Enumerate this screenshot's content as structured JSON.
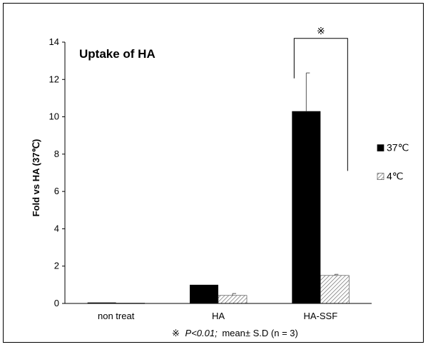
{
  "chart_data": {
    "type": "bar",
    "title": "Uptake of HA",
    "ylabel": "Fold vs HA (37℃)",
    "xlabel": "",
    "ylim": [
      0,
      14
    ],
    "yticks": [
      0,
      2,
      4,
      6,
      8,
      10,
      12,
      14
    ],
    "grid": false,
    "categories": [
      "non treat",
      "HA",
      "HA-SSF"
    ],
    "series": [
      {
        "name": "37℃",
        "values": [
          0.05,
          1.0,
          10.3
        ],
        "errors": [
          0.0,
          0.0,
          2.05
        ],
        "color": "#000000",
        "pattern": "solid"
      },
      {
        "name": "4℃",
        "values": [
          0.02,
          0.43,
          1.5
        ],
        "errors": [
          0.0,
          0.1,
          0.06
        ],
        "color": "#ffffff",
        "pattern": "hatched"
      }
    ],
    "legend_position": "right",
    "significance": {
      "symbol": "※",
      "between_category": "HA-SSF"
    },
    "footnote": {
      "symbol": "※",
      "p_text": "P<0.01;",
      "rest": "mean± S.D (n = 3)"
    }
  }
}
